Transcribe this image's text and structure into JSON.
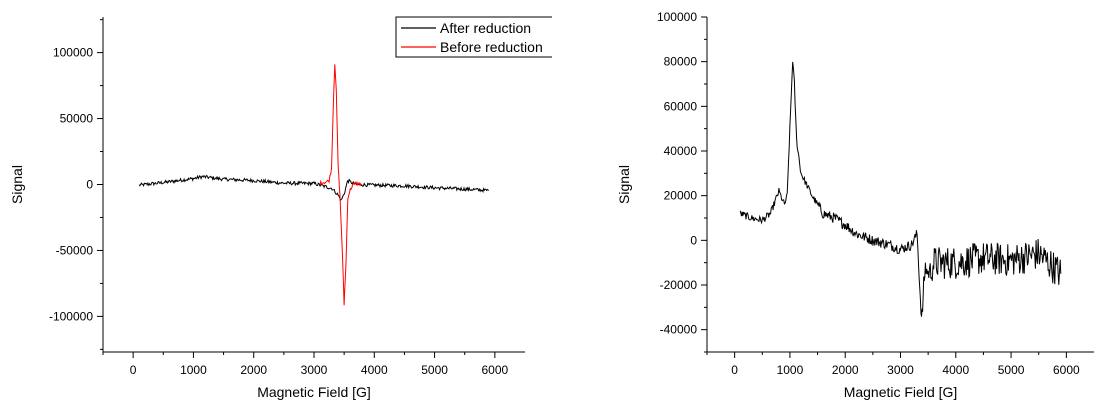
{
  "chart_data": [
    {
      "type": "line",
      "title": "",
      "xlabel": "Magnetic Field [G]",
      "ylabel": "Signal",
      "xlim": [
        -500,
        6500
      ],
      "ylim": [
        -127000,
        127000
      ],
      "x_ticks": [
        0,
        1000,
        2000,
        3000,
        4000,
        5000,
        6000
      ],
      "y_ticks": [
        -100000,
        -50000,
        0,
        50000,
        100000
      ],
      "legend": {
        "position": "top-right"
      },
      "grid": false,
      "series": [
        {
          "name": "After reduction",
          "color": "#000000",
          "x": [
            100,
            500,
            1000,
            1150,
            1500,
            2000,
            2500,
            3000,
            3300,
            3400,
            3450,
            3500,
            3560,
            3620,
            3700,
            4000,
            4500,
            5000,
            5500,
            5900
          ],
          "y": [
            -500,
            1500,
            4500,
            6000,
            4000,
            3000,
            1000,
            800,
            -3000,
            -8000,
            -12000,
            -7000,
            3000,
            1500,
            0,
            -500,
            -1000,
            -2500,
            -3500,
            -4500
          ]
        },
        {
          "name": "Before reduction",
          "color": "#ff0000",
          "x": [
            3100,
            3200,
            3250,
            3290,
            3320,
            3345,
            3370,
            3400,
            3430,
            3470,
            3500,
            3530,
            3560,
            3600,
            3650,
            3700,
            3750,
            3800
          ],
          "y": [
            1000,
            2000,
            3000,
            12000,
            60000,
            92000,
            70000,
            15000,
            -8000,
            -50000,
            -91000,
            -60000,
            -10000,
            -4000,
            0,
            1000,
            500,
            0
          ]
        }
      ]
    },
    {
      "type": "line",
      "title": "",
      "xlabel": "Magnetic Field [G]",
      "ylabel": "Signal",
      "xlim": [
        -500,
        6500
      ],
      "ylim": [
        -50000,
        100000
      ],
      "x_ticks": [
        0,
        1000,
        2000,
        3000,
        4000,
        5000,
        6000
      ],
      "y_ticks": [
        -40000,
        -20000,
        0,
        20000,
        40000,
        60000,
        80000,
        100000
      ],
      "grid": false,
      "series": [
        {
          "color": "#000000",
          "x": [
            100,
            300,
            500,
            650,
            800,
            900,
            950,
            1000,
            1050,
            1080,
            1120,
            1200,
            1300,
            1400,
            1600,
            1800,
            2000,
            2200,
            2500,
            2800,
            3000,
            3200,
            3300,
            3350,
            3380,
            3400,
            3420,
            3450,
            3500,
            3600,
            4000,
            4500,
            5000,
            5500,
            5900
          ],
          "y": [
            12000,
            10000,
            9000,
            12000,
            22000,
            16000,
            20000,
            50000,
            81000,
            70000,
            45000,
            30000,
            25000,
            20000,
            12000,
            10000,
            7000,
            3000,
            0,
            -2000,
            -4000,
            -2000,
            3000,
            -22000,
            -35000,
            -30000,
            -20000,
            -12000,
            -15000,
            -10000,
            -10000,
            -8000,
            -9000,
            -6000,
            -15000
          ]
        }
      ]
    }
  ]
}
